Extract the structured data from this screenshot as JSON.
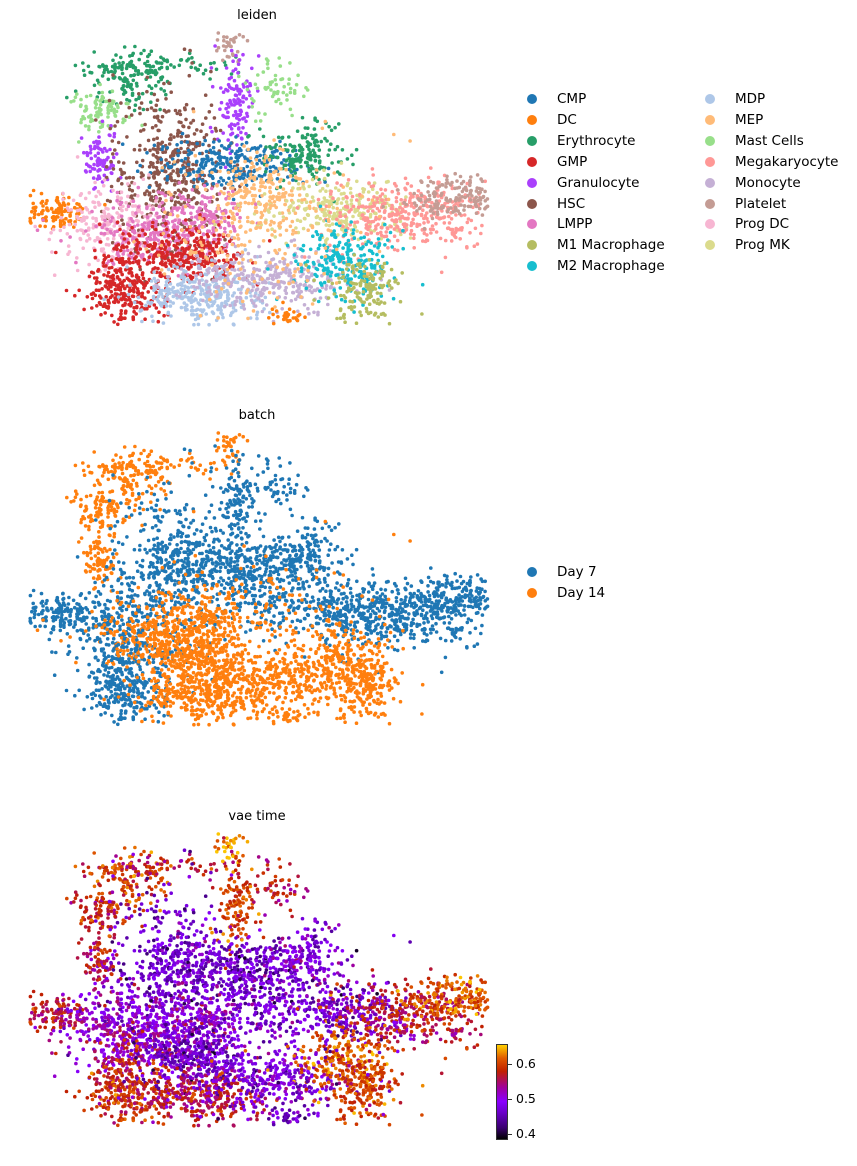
{
  "chart_data": [
    {
      "type": "scatter",
      "title": "leiden",
      "legend_placement": "right",
      "categories": [
        "CMP",
        "DC",
        "Erythrocyte",
        "GMP",
        "Granulocyte",
        "HSC",
        "LMPP",
        "M1 Macrophage",
        "M2 Macrophage",
        "MDP",
        "MEP",
        "Mast Cells",
        "Megakaryocyte",
        "Monocyte",
        "Platelet",
        "Prog DC",
        "Prog MK"
      ],
      "colors": [
        "#1f77b4",
        "#ff7f0e",
        "#279e68",
        "#d62728",
        "#aa40fc",
        "#8c564b",
        "#e377c2",
        "#b5bd61",
        "#17becf",
        "#aec7e8",
        "#ffbb78",
        "#98df8a",
        "#ff9896",
        "#c5b0d5",
        "#c49c94",
        "#f7b6d2",
        "#dbdb8d"
      ]
    },
    {
      "type": "scatter",
      "title": "batch",
      "legend_placement": "right",
      "categories": [
        "Day 7",
        "Day 14"
      ],
      "colors": [
        "#1f77b4",
        "#ff7f0e"
      ]
    },
    {
      "type": "scatter",
      "title": "vae time",
      "colorbar": {
        "colormap": "gnuplot",
        "range": [
          0.39,
          0.655
        ],
        "ticks": [
          "0.4",
          "0.5",
          "0.6"
        ]
      }
    }
  ]
}
